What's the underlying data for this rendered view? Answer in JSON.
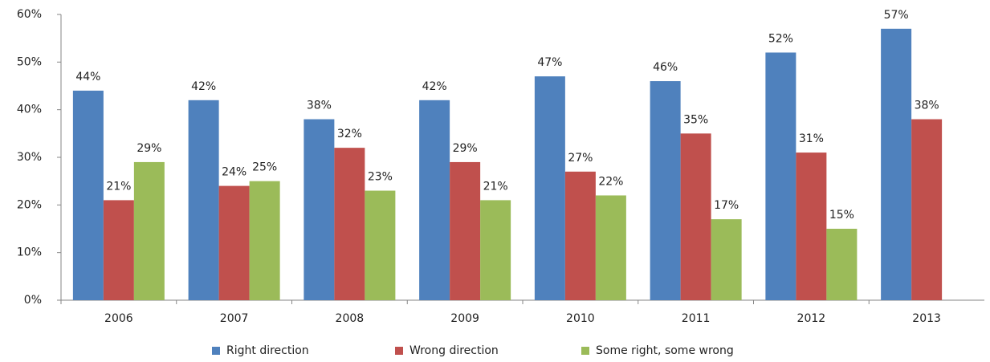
{
  "chart_data": {
    "type": "bar",
    "categories": [
      "2006",
      "2007",
      "2008",
      "2009",
      "2010",
      "2011",
      "2012",
      "2013"
    ],
    "series": [
      {
        "name": "Right direction",
        "color": "#4f81bd",
        "values": [
          44,
          42,
          38,
          42,
          47,
          46,
          52,
          57
        ],
        "value_labels": [
          "44%",
          "42%",
          "38%",
          "42%",
          "47%",
          "46%",
          "52%",
          "57%"
        ]
      },
      {
        "name": "Wrong direction",
        "color": "#c0504d",
        "values": [
          21,
          24,
          32,
          29,
          27,
          35,
          31,
          38
        ],
        "value_labels": [
          "21%",
          "24%",
          "32%",
          "29%",
          "27%",
          "35%",
          "31%",
          "38%"
        ]
      },
      {
        "name": "Some right, some wrong",
        "color": "#9bbb59",
        "values": [
          29,
          25,
          23,
          21,
          22,
          17,
          15,
          null
        ],
        "value_labels": [
          "29%",
          "25%",
          "23%",
          "21%",
          "22%",
          "17%",
          "15%",
          null
        ]
      }
    ],
    "ylim": [
      0,
      60
    ],
    "yticks": [
      {
        "value": 0,
        "label": "0%"
      },
      {
        "value": 10,
        "label": "10%"
      },
      {
        "value": 20,
        "label": "20%"
      },
      {
        "value": 30,
        "label": "30%"
      },
      {
        "value": 40,
        "label": "40%"
      },
      {
        "value": 50,
        "label": "50%"
      },
      {
        "value": 60,
        "label": "60%"
      }
    ],
    "grid": false,
    "legend": "bottom"
  }
}
